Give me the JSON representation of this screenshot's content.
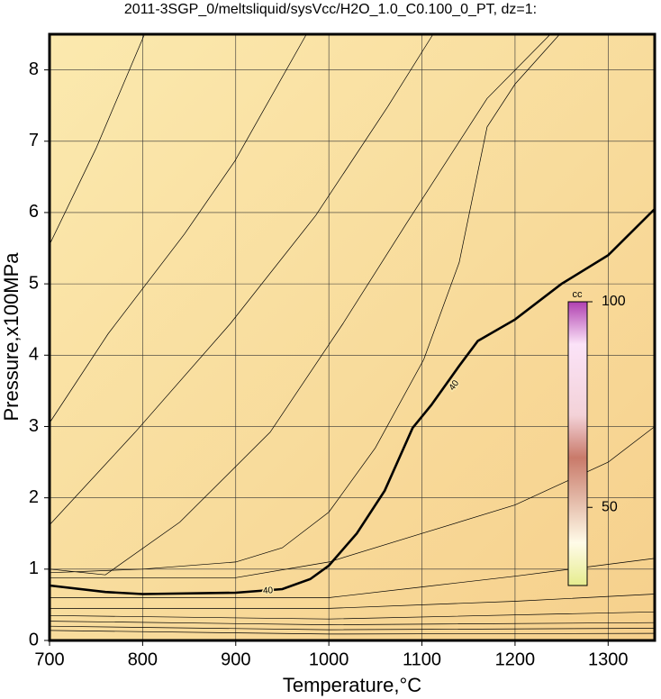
{
  "chart_data": {
    "type": "contour",
    "title": "2011-3SGP_0/meltsliquid/sysVcc/H2O_1.0_C0.100_0_PT, dz=1:",
    "x_label": "Temperature,°C",
    "y_label": "Pressure,x100MPa",
    "xlim": [
      700,
      1350
    ],
    "ylim": [
      0,
      8.5
    ],
    "xticks": [
      700,
      800,
      900,
      1000,
      1100,
      1200,
      1300
    ],
    "yticks": [
      0,
      1,
      2,
      3,
      4,
      5,
      6,
      7,
      8
    ],
    "grid": true,
    "contours": [
      {
        "label": "40",
        "bold": true,
        "x": [
          700,
          760,
          800,
          900,
          950,
          980,
          1000,
          1030,
          1060,
          1090,
          1110,
          1140,
          1160,
          1200,
          1250,
          1300,
          1350
        ],
        "y": [
          0.77,
          0.68,
          0.65,
          0.67,
          0.72,
          0.86,
          1.05,
          1.5,
          2.1,
          2.98,
          3.3,
          3.85,
          4.2,
          4.5,
          5.0,
          5.4,
          6.05
        ]
      },
      {
        "x": [
          700,
          750,
          802
        ],
        "y": [
          5.55,
          6.9,
          8.5
        ]
      },
      {
        "x": [
          700,
          763,
          845,
          899,
          976
        ],
        "y": [
          3.05,
          4.3,
          5.7,
          6.72,
          8.5
        ]
      },
      {
        "x": [
          700,
          792,
          894,
          986,
          1063,
          1112
        ],
        "y": [
          1.62,
          2.92,
          4.44,
          5.96,
          7.48,
          8.5
        ]
      },
      {
        "x": [
          700,
          760,
          840,
          937,
          1015,
          1083,
          1170,
          1238
        ],
        "y": [
          1.0,
          0.92,
          1.66,
          2.92,
          4.44,
          5.84,
          7.6,
          8.5
        ]
      },
      {
        "x": [
          700,
          800,
          900,
          950,
          1000,
          1050,
          1102,
          1140,
          1170,
          1200,
          1248
        ],
        "y": [
          0.95,
          1.0,
          1.1,
          1.3,
          1.8,
          2.7,
          3.94,
          5.3,
          7.2,
          7.8,
          8.5
        ]
      },
      {
        "x": [
          700,
          900,
          1000,
          1100,
          1200,
          1300,
          1350
        ],
        "y": [
          0.88,
          0.88,
          1.1,
          1.5,
          1.9,
          2.5,
          3.0
        ]
      },
      {
        "x": [
          700,
          1000,
          1100,
          1200,
          1350
        ],
        "y": [
          0.6,
          0.6,
          0.75,
          0.9,
          1.15
        ]
      },
      {
        "x": [
          700,
          1000,
          1200,
          1350
        ],
        "y": [
          0.45,
          0.45,
          0.55,
          0.65
        ]
      },
      {
        "x": [
          700,
          1000,
          1350
        ],
        "y": [
          0.35,
          0.3,
          0.4
        ]
      },
      {
        "x": [
          700,
          1000,
          1350
        ],
        "y": [
          0.27,
          0.22,
          0.25
        ]
      },
      {
        "x": [
          700,
          1000,
          1350
        ],
        "y": [
          0.2,
          0.15,
          0.17
        ]
      },
      {
        "x": [
          700,
          1000,
          1350
        ],
        "y": [
          0.14,
          0.09,
          0.1
        ]
      }
    ],
    "colorbar": {
      "label": "cc",
      "lim": [
        31,
        100
      ],
      "ticks": [
        50,
        100
      ]
    }
  }
}
